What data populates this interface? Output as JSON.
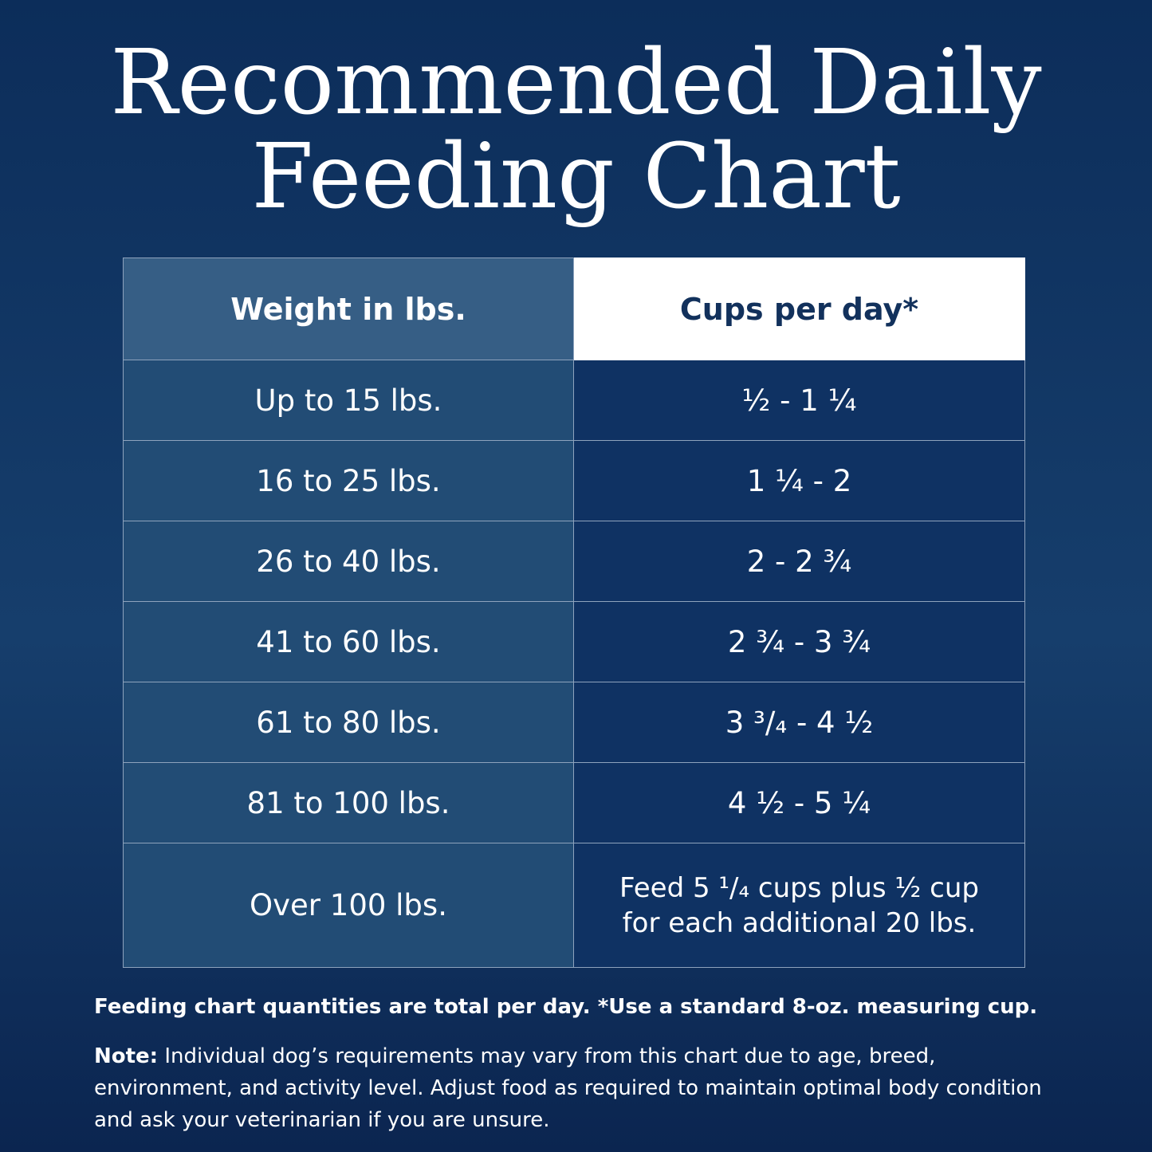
{
  "title": [
    "Recommended Daily",
    "Feeding Chart"
  ],
  "table": {
    "header": [
      "Weight in lbs.",
      "Cups per day*"
    ],
    "rows": [
      [
        "Up to 15 lbs.",
        "½  - 1 ¼"
      ],
      [
        "16 to 25 lbs.",
        "1 ¼  - 2"
      ],
      [
        "26 to 40 lbs.",
        "2  - 2 ¾"
      ],
      [
        "41 to 60 lbs.",
        "2 ¾  - 3 ¾"
      ],
      [
        "61 to 80 lbs.",
        "3 ³/₄  - 4 ½"
      ],
      [
        "81 to 100 lbs.",
        "4 ½  - 5 ¼"
      ],
      [
        "Over 100 lbs.",
        [
          "Feed 5 ¹/₄ cups plus ½ cup",
          "for each additional 20 lbs."
        ]
      ]
    ]
  },
  "footnote": "Feeding chart quantities are total per day. *Use a standard 8-oz. measuring cup.",
  "note": {
    "label": "Note:",
    "text": "Individual dog’s requirements may vary from this chart due to age, breed, environment, and activity level. Adjust food as required to maintain optimal body condition and ask your veterinarian if you are unsure."
  }
}
